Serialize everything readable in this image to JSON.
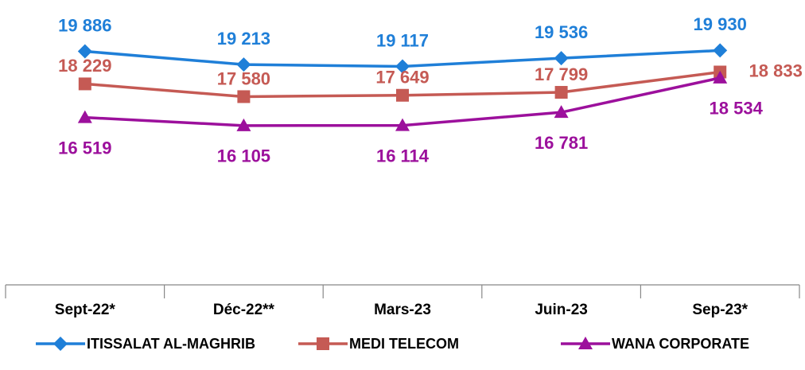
{
  "chart_data": {
    "type": "line",
    "categories": [
      "Sept-22*",
      "Déc-22**",
      "Mars-23",
      "Juin-23",
      "Sep-23*"
    ],
    "ylim": [
      8000,
      21000
    ],
    "legend": "bottom",
    "series": [
      {
        "name": "ITISSALAT AL-MAGHRIB",
        "color": "#1f7fd8",
        "marker": "diamond",
        "values": [
          19886,
          19213,
          19117,
          19536,
          19930
        ],
        "value_labels": [
          "19 886",
          "19 213",
          "19 117",
          "19 536",
          "19 930"
        ]
      },
      {
        "name": "MEDI TELECOM",
        "color": "#c55a54",
        "marker": "square",
        "values": [
          18229,
          17580,
          17649,
          17799,
          18833
        ],
        "value_labels": [
          "18 229",
          "17 580",
          "17 649",
          "17 799",
          "18 833"
        ]
      },
      {
        "name": "WANA CORPORATE",
        "color": "#9c109c",
        "marker": "triangle",
        "values": [
          16519,
          16105,
          16114,
          16781,
          18534
        ],
        "value_labels": [
          "16 519",
          "16 105",
          "16 114",
          "16 781",
          "18 534"
        ]
      }
    ]
  }
}
